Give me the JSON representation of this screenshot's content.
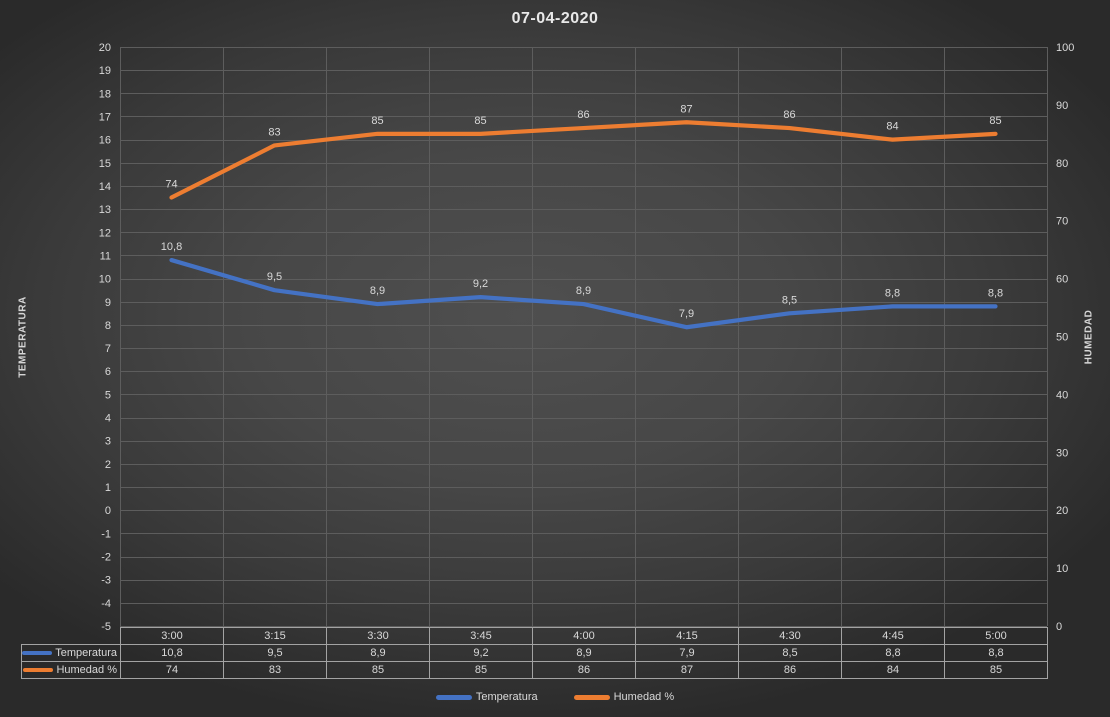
{
  "chart_data": {
    "type": "line",
    "title": "07-04-2020",
    "categories": [
      "3:00",
      "3:15",
      "3:30",
      "3:45",
      "4:00",
      "4:15",
      "4:30",
      "4:45",
      "5:00"
    ],
    "series": [
      {
        "name": "Temperatura",
        "color": "#4472C4",
        "axis": "left",
        "values": [
          10.8,
          9.5,
          8.9,
          9.2,
          8.9,
          7.9,
          8.5,
          8.8,
          8.8
        ],
        "labels": [
          "10,8",
          "9,5",
          "8,9",
          "9,2",
          "8,9",
          "7,9",
          "8,5",
          "8,8",
          "8,8"
        ]
      },
      {
        "name": "Humedad %",
        "color": "#ED7D31",
        "axis": "right",
        "values": [
          74,
          83,
          85,
          85,
          86,
          87,
          86,
          84,
          85
        ],
        "labels": [
          "74",
          "83",
          "85",
          "85",
          "86",
          "87",
          "86",
          "84",
          "85"
        ]
      }
    ],
    "axes": {
      "left": {
        "label": "TEMPERATURA",
        "min": -5,
        "max": 20,
        "step": 1
      },
      "right": {
        "label": "HUMEDAD",
        "min": 0,
        "max": 100,
        "step": 10
      }
    },
    "legend": {
      "position": "bottom",
      "items": [
        "Temperatura",
        "Humedad %"
      ]
    },
    "grid": true,
    "data_table": true,
    "colors": {
      "text": "#d9d9d9",
      "gridline": "#5d5d5d",
      "table_border": "#a3a3a3",
      "title": "#e9e9e9"
    }
  }
}
